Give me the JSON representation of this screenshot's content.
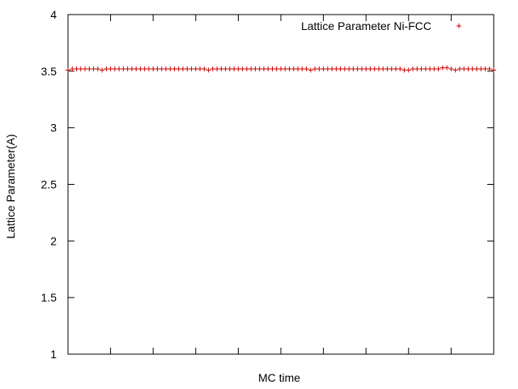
{
  "chart_data": {
    "type": "scatter",
    "xlabel": "MC time",
    "ylabel": "Lattice Parameter(A)",
    "ylim": [
      1,
      4
    ],
    "yticks": [
      1,
      1.5,
      2,
      2.5,
      3,
      3.5,
      4
    ],
    "ytick_labels": [
      "1",
      "1.5",
      "2",
      "2.5",
      "3",
      "3.5",
      "4"
    ],
    "xlim": [
      0,
      100
    ],
    "xticks_shown_without_labels": true,
    "grid": false,
    "legend_position": "top-right",
    "series": [
      {
        "name": "Lattice Parameter Ni-FCC",
        "marker": "+",
        "color": "#cc0000",
        "x": [
          0,
          1,
          2,
          3,
          4,
          5,
          6,
          7,
          8,
          9,
          10,
          11,
          12,
          13,
          14,
          15,
          16,
          17,
          18,
          19,
          20,
          21,
          22,
          23,
          24,
          25,
          26,
          27,
          28,
          29,
          30,
          31,
          32,
          33,
          34,
          35,
          36,
          37,
          38,
          39,
          40,
          41,
          42,
          43,
          44,
          45,
          46,
          47,
          48,
          49,
          50,
          51,
          52,
          53,
          54,
          55,
          56,
          57,
          58,
          59,
          60,
          61,
          62,
          63,
          64,
          65,
          66,
          67,
          68,
          69,
          70,
          71,
          72,
          73,
          74,
          75,
          76,
          77,
          78,
          79,
          80,
          81,
          82,
          83,
          84,
          85,
          86,
          87,
          88,
          89,
          90,
          91,
          92,
          93,
          94,
          95,
          96,
          97,
          98,
          99,
          100
        ],
        "values": [
          3.51,
          3.52,
          3.52,
          3.52,
          3.52,
          3.52,
          3.52,
          3.52,
          3.51,
          3.52,
          3.52,
          3.52,
          3.52,
          3.52,
          3.52,
          3.52,
          3.52,
          3.52,
          3.52,
          3.52,
          3.52,
          3.52,
          3.52,
          3.52,
          3.52,
          3.52,
          3.52,
          3.52,
          3.52,
          3.52,
          3.52,
          3.52,
          3.52,
          3.51,
          3.52,
          3.52,
          3.52,
          3.52,
          3.52,
          3.52,
          3.52,
          3.52,
          3.52,
          3.52,
          3.52,
          3.52,
          3.52,
          3.52,
          3.52,
          3.52,
          3.52,
          3.52,
          3.52,
          3.52,
          3.52,
          3.52,
          3.52,
          3.51,
          3.52,
          3.52,
          3.52,
          3.52,
          3.52,
          3.52,
          3.52,
          3.52,
          3.52,
          3.52,
          3.52,
          3.52,
          3.52,
          3.52,
          3.52,
          3.52,
          3.52,
          3.52,
          3.52,
          3.52,
          3.52,
          3.51,
          3.51,
          3.52,
          3.52,
          3.52,
          3.52,
          3.52,
          3.52,
          3.52,
          3.53,
          3.53,
          3.52,
          3.51,
          3.52,
          3.52,
          3.52,
          3.52,
          3.52,
          3.52,
          3.52,
          3.52,
          3.51
        ]
      }
    ]
  }
}
